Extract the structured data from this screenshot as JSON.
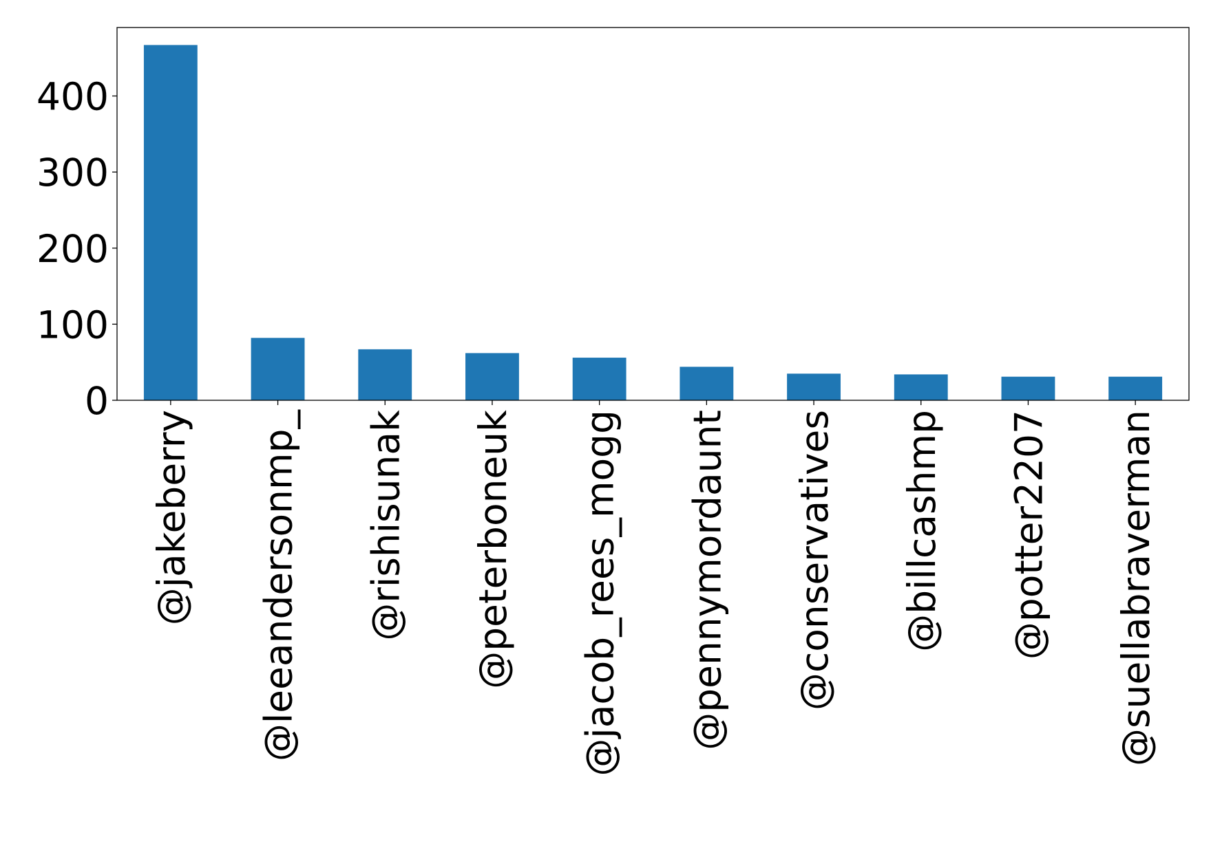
{
  "colors": {
    "bar": "#1f77b4",
    "axis": "#000000",
    "background": "#ffffff"
  },
  "chart_data": {
    "type": "bar",
    "categories": [
      "@jakeberry",
      "@leeandersonmp_",
      "@rishisunak",
      "@peterboneuk",
      "@jacob_rees_mogg",
      "@pennymordaunt",
      "@conservatives",
      "@billcashmp",
      "@potter2207",
      "@suellabraverman"
    ],
    "values": [
      467,
      82,
      67,
      62,
      56,
      44,
      35,
      34,
      31,
      31
    ],
    "ylim": [
      0,
      490
    ],
    "yticks": [
      0,
      100,
      200,
      300,
      400
    ],
    "grid": false,
    "legend": "none"
  }
}
